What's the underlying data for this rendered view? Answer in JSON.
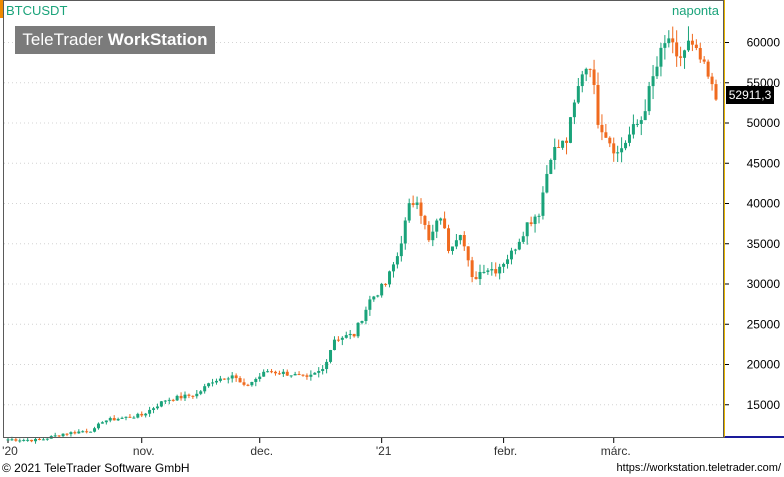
{
  "header": {
    "symbol": "BTCUSDT",
    "period": "naponta",
    "watermark_light": "TeleTrader ",
    "watermark_bold": "WorkStation",
    "last_price": "52911,3"
  },
  "footer": {
    "copyright": "© 2021 TeleTrader Software GmbH",
    "url": "https://workstation.teletrader.com/"
  },
  "colors": {
    "up": "#1aa37a",
    "down": "#f06a1e",
    "grid": "#d4d4d4",
    "label": "#1aa37a"
  },
  "chart_data": {
    "type": "candlestick",
    "title": "BTCUSDT",
    "ylim": [
      10000,
      64000
    ],
    "y_ticks": [
      15000,
      20000,
      25000,
      30000,
      35000,
      40000,
      45000,
      50000,
      55000,
      60000
    ],
    "y_tick_labels": [
      "15000",
      "20000",
      "25000",
      "30000",
      "35000",
      "40000",
      "45000",
      "50000",
      "55000",
      "60000"
    ],
    "x_ticks": [
      {
        "label": "'20",
        "index": 0
      },
      {
        "label": "nov.",
        "index": 34
      },
      {
        "label": "dec.",
        "index": 64
      },
      {
        "label": "'21",
        "index": 95
      },
      {
        "label": "febr.",
        "index": 126
      },
      {
        "label": "márc.",
        "index": 154
      }
    ],
    "grid": true,
    "last_close": 52911.3,
    "anchors": [
      [
        0,
        10700
      ],
      [
        8,
        10600
      ],
      [
        14,
        11400
      ],
      [
        22,
        11900
      ],
      [
        24,
        13000
      ],
      [
        34,
        13700
      ],
      [
        40,
        15600
      ],
      [
        48,
        16300
      ],
      [
        52,
        18000
      ],
      [
        57,
        18700
      ],
      [
        60,
        17200
      ],
      [
        66,
        19200
      ],
      [
        72,
        18800
      ],
      [
        76,
        18200
      ],
      [
        80,
        19400
      ],
      [
        83,
        23200
      ],
      [
        88,
        23700
      ],
      [
        92,
        28000
      ],
      [
        96,
        30000
      ],
      [
        99,
        33500
      ],
      [
        102,
        39500
      ],
      [
        104,
        40800
      ],
      [
        107,
        35200
      ],
      [
        110,
        38500
      ],
      [
        112,
        34500
      ],
      [
        115,
        36700
      ],
      [
        118,
        30500
      ],
      [
        121,
        32000
      ],
      [
        124,
        31800
      ],
      [
        128,
        33800
      ],
      [
        132,
        37500
      ],
      [
        135,
        39000
      ],
      [
        138,
        46200
      ],
      [
        142,
        47800
      ],
      [
        146,
        56500
      ],
      [
        148,
        57500
      ],
      [
        150,
        50500
      ],
      [
        153,
        47800
      ],
      [
        155,
        46200
      ],
      [
        158,
        48500
      ],
      [
        161,
        50500
      ],
      [
        164,
        55500
      ],
      [
        166,
        58500
      ],
      [
        168,
        60600
      ],
      [
        170,
        57500
      ],
      [
        173,
        59800
      ],
      [
        176,
        57800
      ],
      [
        178,
        55500
      ],
      [
        180,
        52911.3
      ]
    ]
  }
}
